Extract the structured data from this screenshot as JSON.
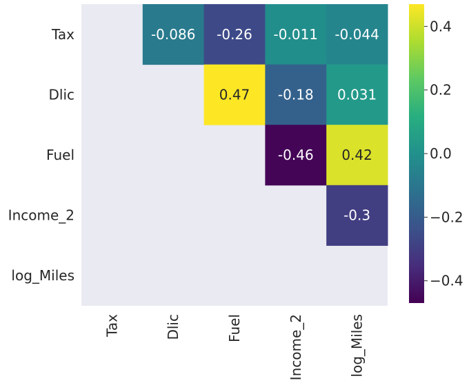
{
  "chart_data": {
    "type": "heatmap",
    "rows": [
      "Tax",
      "Dlic",
      "Fuel",
      "Income_2",
      "log_Miles"
    ],
    "columns": [
      "Tax",
      "Dlic",
      "Fuel",
      "Income_2",
      "log_Miles"
    ],
    "values": [
      [
        null,
        -0.086,
        -0.26,
        -0.011,
        -0.044
      ],
      [
        null,
        null,
        0.47,
        -0.18,
        0.031
      ],
      [
        null,
        null,
        null,
        -0.46,
        0.42
      ],
      [
        null,
        null,
        null,
        null,
        -0.3
      ],
      [
        null,
        null,
        null,
        null,
        null
      ]
    ],
    "annotations": [
      [
        null,
        "-0.086",
        "-0.26",
        "-0.011",
        "-0.044"
      ],
      [
        null,
        null,
        "0.47",
        "-0.18",
        "0.031"
      ],
      [
        null,
        null,
        null,
        "-0.46",
        "0.42"
      ],
      [
        null,
        null,
        null,
        null,
        "-0.3"
      ],
      [
        null,
        null,
        null,
        null,
        null
      ]
    ],
    "colormap": "viridis",
    "vmin": -0.47,
    "vmax": 0.47,
    "masked_background": "#EAEAF2",
    "colorbar": {
      "ticks": [
        0.4,
        0.2,
        0.0,
        -0.2,
        -0.4
      ],
      "tick_labels": [
        "0.4",
        "0.2",
        "0.0",
        "−0.2",
        "−0.4"
      ]
    },
    "grid": false
  }
}
